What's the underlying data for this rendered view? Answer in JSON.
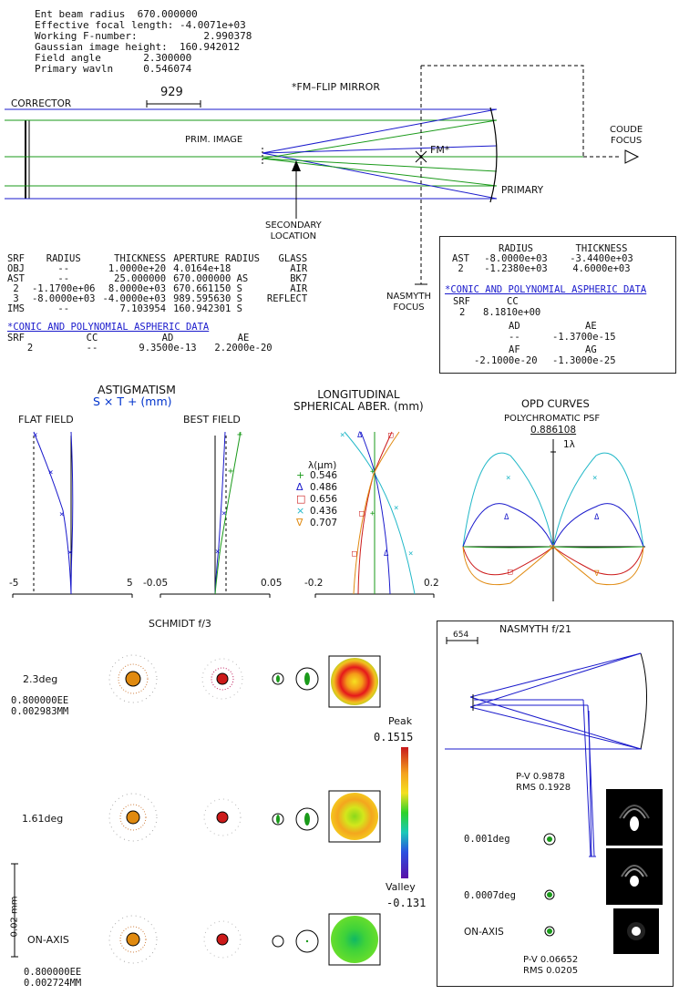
{
  "header_lines": [
    "Ent beam radius  670.000000",
    "Effective focal length: -4.0071e+03",
    "Working F-number:           2.990378",
    "Gaussian image height:  160.942012",
    "Field angle       2.300000",
    "Primary wavln     0.546074"
  ],
  "layout": {
    "scale_label": "929",
    "flip_mirror": "*FM–FLIP MIRROR",
    "corrector": "CORRECTOR",
    "prim_image": "PRIM. IMAGE",
    "coude_focus": "COUDE\nFOCUS",
    "fm": "FM*",
    "primary": "PRIMARY",
    "secondary_location": "SECONDARY\nLOCATION",
    "nasmyth_focus": "NASMYTH\nFOCUS"
  },
  "lens_table": {
    "headers": [
      "SRF",
      "RADIUS",
      "THICKNESS",
      "APERTURE RADIUS",
      "GLASS"
    ],
    "rows": [
      [
        "OBJ",
        "--",
        "1.0000e+20",
        "4.0164e+18",
        "AIR"
      ],
      [
        "AST",
        "--",
        "25.000000",
        "670.000000 AS",
        "BK7"
      ],
      [
        "2",
        "-1.1700e+06",
        "8.0000e+03",
        "670.661150 S",
        "AIR"
      ],
      [
        "3",
        "-8.0000e+03",
        "-4.0000e+03",
        "989.595630 S",
        "REFLECT"
      ],
      [
        "IMS",
        "--",
        "7.103954",
        "160.942301 S",
        ""
      ]
    ],
    "aspheric_title": "*CONIC AND POLYNOMIAL ASPHERIC DATA",
    "asph_headers": [
      "SRF",
      "CC",
      "AD",
      "AE"
    ],
    "asph_row": [
      "2",
      "--",
      "9.3500e-13",
      "2.2000e-20"
    ]
  },
  "nasmyth_table": {
    "headers": [
      "RADIUS",
      "THICKNESS"
    ],
    "rows": [
      [
        "AST",
        "-8.0000e+03",
        "-3.4400e+03"
      ],
      [
        "2",
        "-1.2380e+03",
        "4.6000e+03"
      ]
    ],
    "aspheric_title": "*CONIC AND POLYNOMIAL ASPHERIC DATA",
    "srf_label": "SRF",
    "cc_label": "CC",
    "cc_row": [
      "2",
      "8.1810e+00"
    ],
    "ad_label": "AD",
    "ae_label": "AE",
    "ad_row": [
      "--",
      "-1.3700e-15"
    ],
    "af_label": "AF",
    "ag_label": "AG",
    "af_row": [
      "-2.1000e-20",
      "-1.3000e-25"
    ]
  },
  "astig": {
    "title": "ASTIGMATISM",
    "subtitle": "S × T + (mm)",
    "flat": "FLAT FIELD",
    "best": "BEST FIELD",
    "flat_ticks": [
      "-5",
      "5"
    ],
    "best_ticks": [
      "-0.05",
      "0.05"
    ]
  },
  "lsa": {
    "title": "LONGITUDINAL\nSPHERICAL ABER. (mm)",
    "legend_title": "λ(µm)",
    "legend": [
      {
        "sym": "+",
        "label": "0.546",
        "color": "#1a9a1a"
      },
      {
        "sym": "Δ",
        "label": "0.486",
        "color": "#1a1acc"
      },
      {
        "sym": "□",
        "label": "0.656",
        "color": "#cc1a1a"
      },
      {
        "sym": "×",
        "label": "0.436",
        "color": "#22b8c8"
      },
      {
        "sym": "∇",
        "label": "0.707",
        "color": "#e08a10"
      }
    ],
    "ticks": [
      "-0.2",
      "0.2"
    ]
  },
  "opd": {
    "title": "OPD CURVES",
    "subtitle": "POLYCHROMATIC PSF",
    "value": "0.886108",
    "lambda": "1λ"
  },
  "schmidt": {
    "title": "SCHMIDT f/3",
    "rows": [
      {
        "label": "2.3deg",
        "ee1": "0.800000EE",
        "ee2": "0.002983MM"
      },
      {
        "label": "1.61deg"
      },
      {
        "label": "ON-AXIS",
        "ee1": "0.800000EE",
        "ee2": "0.002724MM"
      }
    ],
    "scale": "0.02 mm",
    "peak_label": "Peak",
    "peak_value": "0.1515",
    "valley_label": "Valley",
    "valley_value": "-0.131"
  },
  "nasmyth_panel": {
    "title": "NASMYTH f/21",
    "scale": "654",
    "pv1": "P-V 0.9878",
    "rms1": "RMS 0.1928",
    "fields": [
      "0.001deg",
      "0.0007deg",
      "ON-AXIS"
    ],
    "pv2": "P-V 0.06652",
    "rms2": "RMS 0.0205"
  }
}
